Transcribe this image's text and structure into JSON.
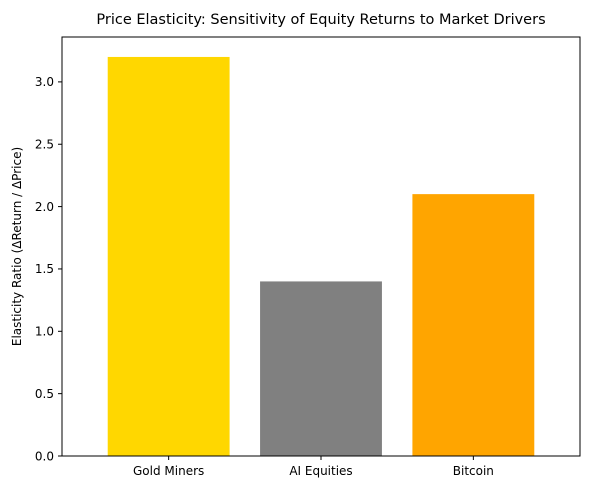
{
  "chart_data": {
    "type": "bar",
    "title": "Price Elasticity: Sensitivity of Equity Returns to Market Drivers",
    "xlabel": "",
    "ylabel": "Elasticity Ratio (ΔReturn / ΔPrice)",
    "categories": [
      "Gold Miners",
      "AI Equities",
      "Bitcoin"
    ],
    "values": [
      3.2,
      1.4,
      2.1
    ],
    "colors": [
      "#FFD700",
      "#808080",
      "#FFA500"
    ],
    "ylim": [
      0,
      3.36
    ],
    "yticks": [
      0.0,
      0.5,
      1.0,
      1.5,
      2.0,
      2.5,
      3.0
    ],
    "ytick_labels": [
      "0.0",
      "0.5",
      "1.0",
      "1.5",
      "2.0",
      "2.5",
      "3.0"
    ],
    "grid": false,
    "legend": "none"
  }
}
